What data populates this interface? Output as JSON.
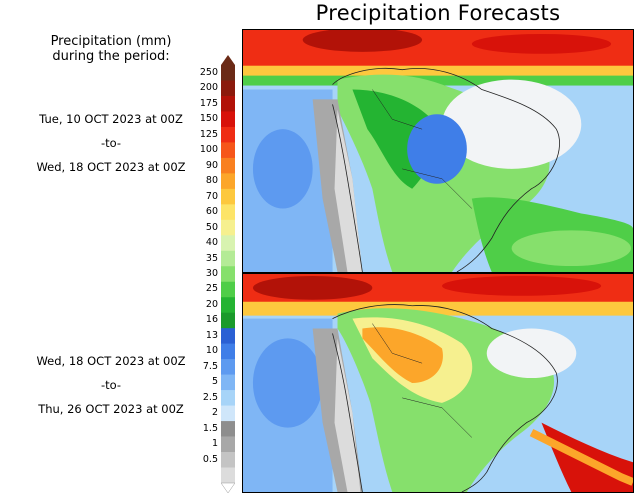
{
  "title": "Precipitation Forecasts",
  "legend": {
    "title_line1": "Precipitation (mm)",
    "title_line2": "during the period:",
    "levels": [
      "250",
      "200",
      "175",
      "150",
      "125",
      "100",
      "90",
      "80",
      "70",
      "60",
      "50",
      "40",
      "35",
      "30",
      "25",
      "20",
      "16",
      "13",
      "10",
      "7.5",
      "5",
      "2.5",
      "2",
      "1.5",
      "1",
      "0.5"
    ],
    "colors": [
      "#6b2a16",
      "#8b1a0c",
      "#b21208",
      "#d8120a",
      "#ef2d14",
      "#f6561a",
      "#f98020",
      "#fca62a",
      "#fdc83e",
      "#fde468",
      "#f6f08f",
      "#d8f3b0",
      "#b4eb96",
      "#86e06c",
      "#4fce48",
      "#24b432",
      "#1a9a2b",
      "#2a60d4",
      "#3f7ee8",
      "#5d9af0",
      "#7fb6f5",
      "#a7d4f8",
      "#cfe6fa",
      "#8e8e8e",
      "#a8a8a8",
      "#c4c4c4",
      "#dcdcdc"
    ]
  },
  "periods": [
    {
      "start": "Tue, 10 OCT 2023 at 00Z",
      "sep": "-to-",
      "end": "Wed, 18 OCT 2023 at 00Z"
    },
    {
      "start": "Wed, 18 OCT 2023 at 00Z",
      "sep": "-to-",
      "end": "Thu, 26 OCT 2023 at 00Z"
    }
  ]
}
